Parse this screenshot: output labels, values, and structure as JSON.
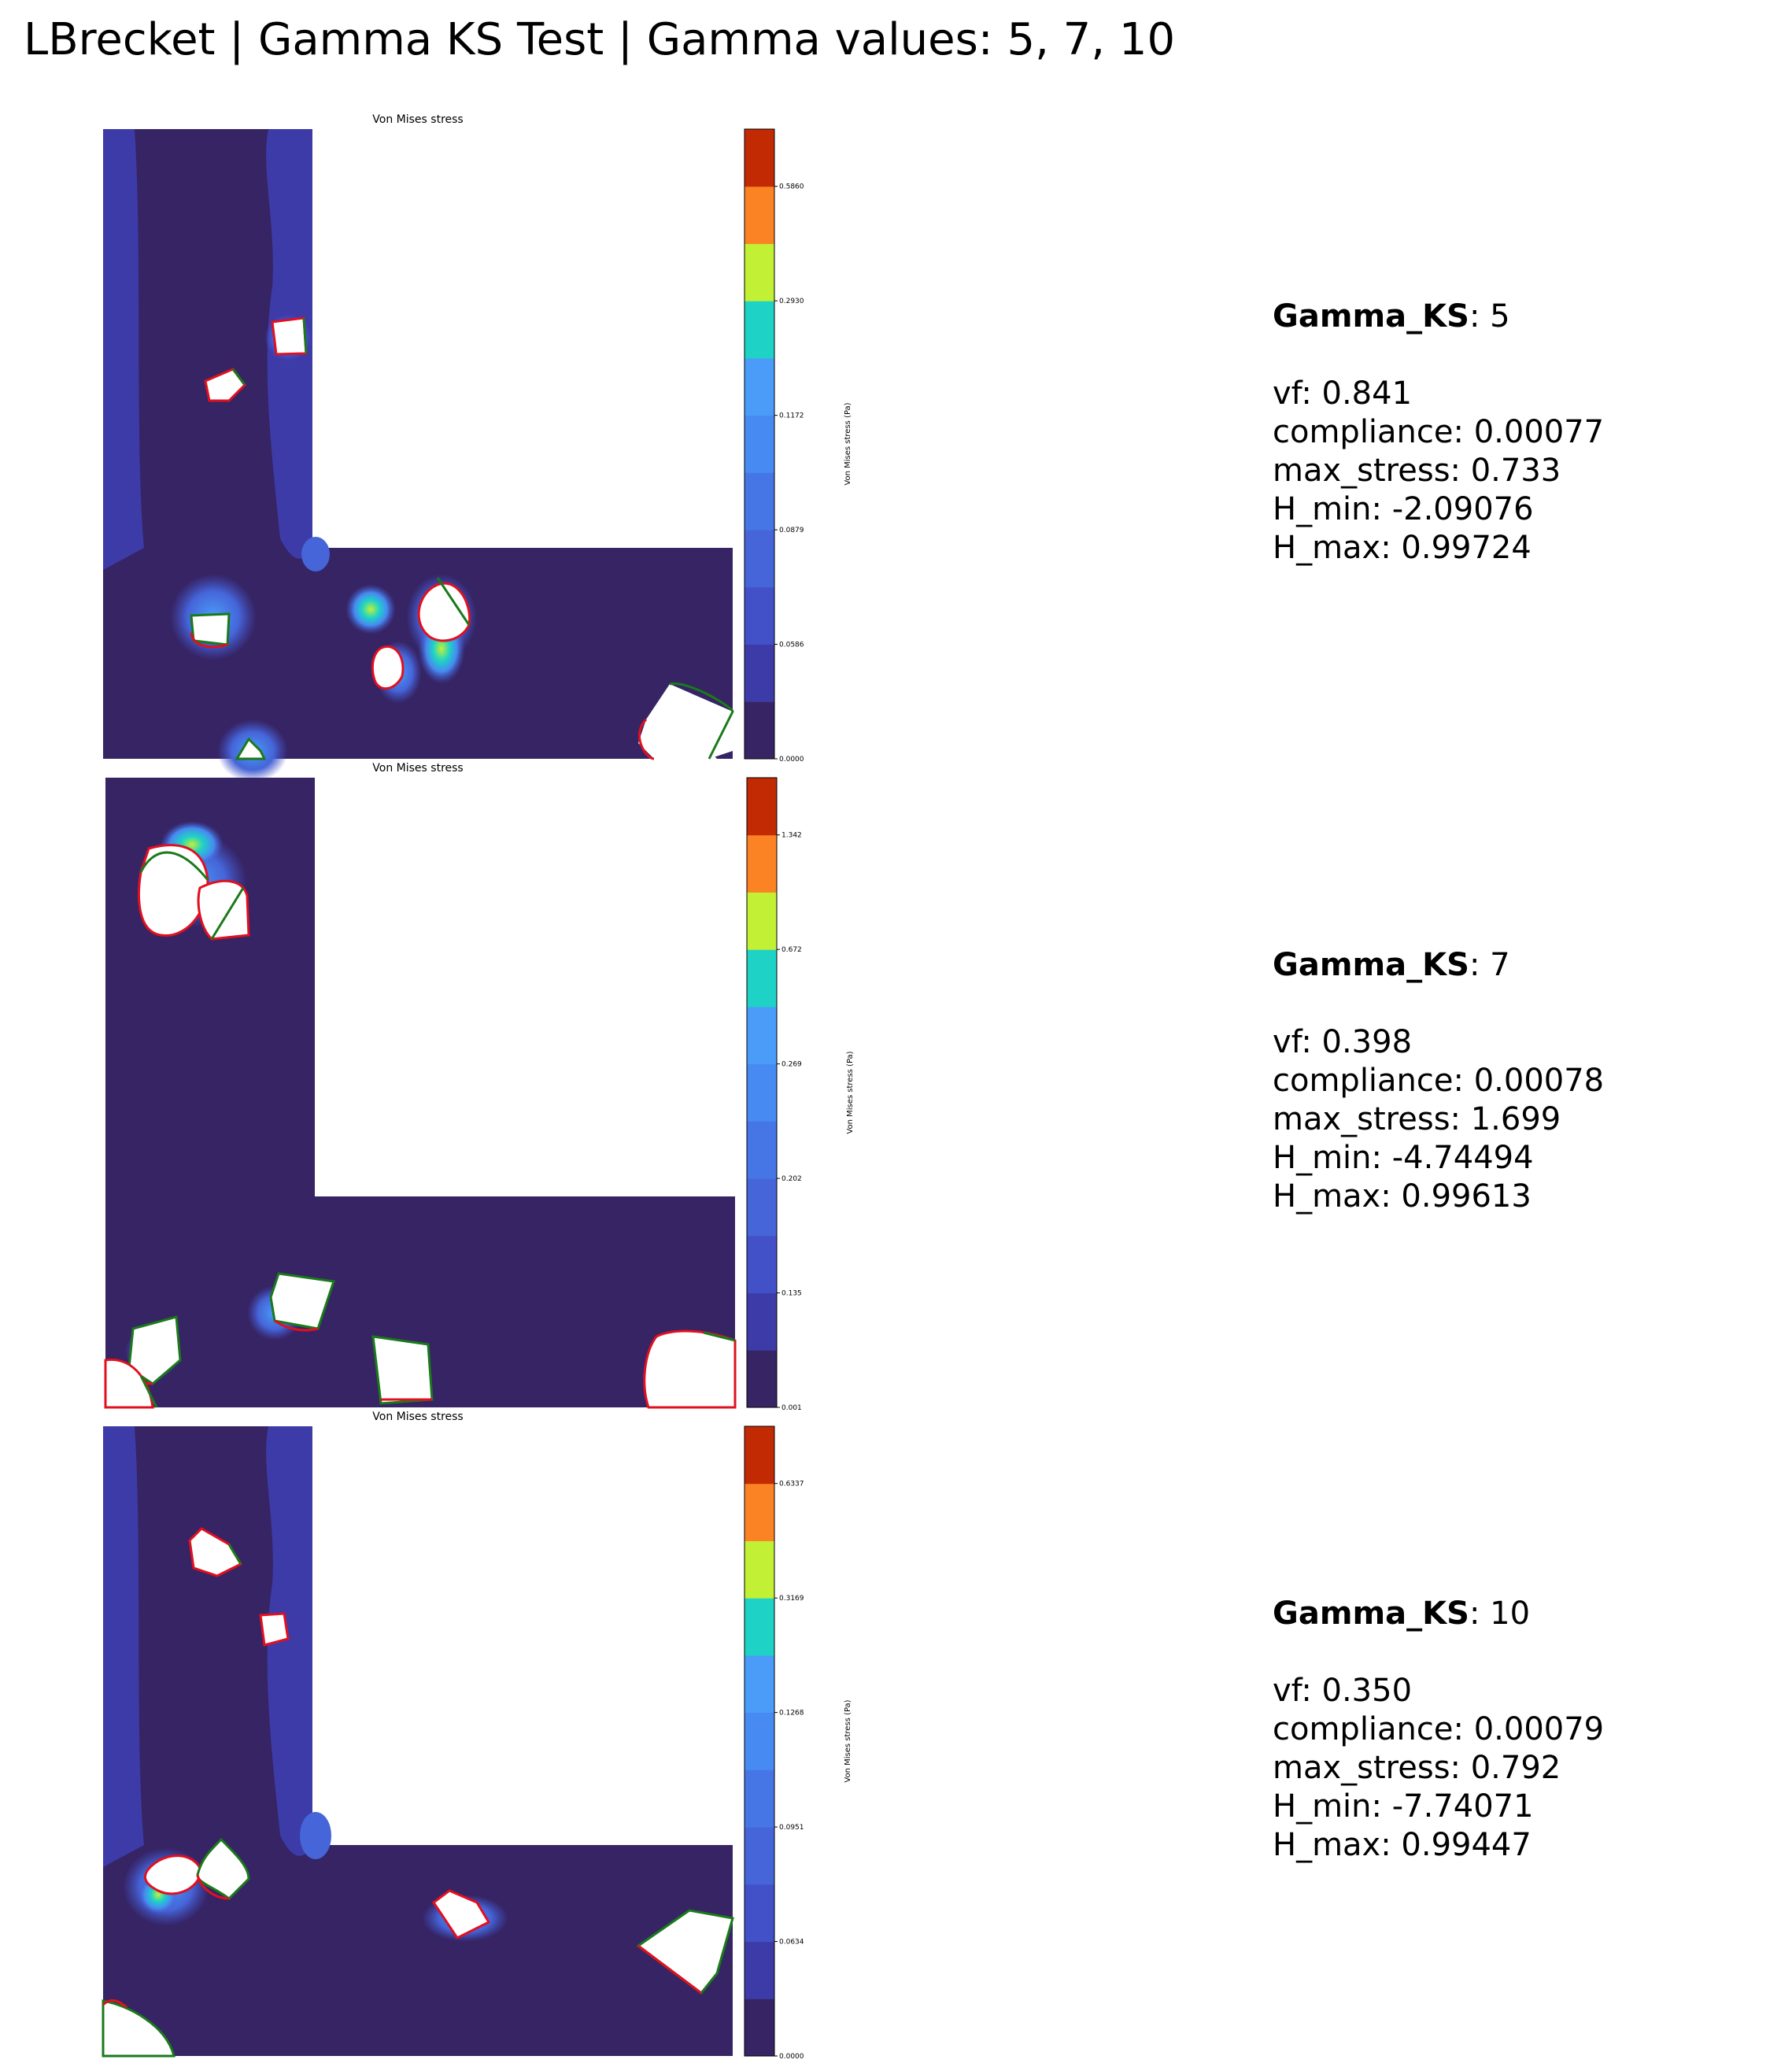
{
  "page_title": "LBrecket | Gamma KS Test | Gamma values: 5, 7, 10",
  "colors": {
    "background_field": "#362464",
    "cut_fill": "#ffffff",
    "outline_red": "#e01020",
    "outline_green": "#1a7a1a"
  },
  "colormap": [
    "#362464",
    "#3d3ba8",
    "#4251c7",
    "#4565d8",
    "#4676e6",
    "#478af1",
    "#4a9cf8",
    "#1ed3c6",
    "#c2f034",
    "#fb8324",
    "#c22a03"
  ],
  "chart_data": [
    {
      "type": "heatmap",
      "title": "Von Mises stress",
      "colorbar_label": "Von Mises stress (Pa)",
      "colorbar_ticks": [
        "0.0000",
        "0.0586",
        "0.0879",
        "0.1172",
        "0.2930",
        "0.5860"
      ],
      "gamma_label": "Gamma_KS",
      "gamma_value": ": 5",
      "stats": [
        "vf: 0.841",
        "compliance: 0.00077",
        "max_stress: 0.733",
        "H_min: -2.09076",
        "H_max: 0.99724"
      ]
    },
    {
      "type": "heatmap",
      "title": "Von Mises stress",
      "colorbar_label": "Von Mises stress (Pa)",
      "colorbar_ticks": [
        "0.001",
        "0.135",
        "0.202",
        "0.269",
        "0.672",
        "1.342"
      ],
      "gamma_label": "Gamma_KS",
      "gamma_value": ": 7",
      "stats": [
        "vf: 0.398",
        "compliance: 0.00078",
        "max_stress: 1.699",
        "H_min: -4.74494",
        "H_max: 0.99613"
      ]
    },
    {
      "type": "heatmap",
      "title": "Von Mises stress",
      "colorbar_label": "Von Mises stress (Pa)",
      "colorbar_ticks": [
        "0.0000",
        "0.0634",
        "0.0951",
        "0.1268",
        "0.3169",
        "0.6337"
      ],
      "gamma_label": "Gamma_KS",
      "gamma_value": ": 10",
      "stats": [
        "vf: 0.350",
        "compliance: 0.00079",
        "max_stress: 0.792",
        "H_min: -7.74071",
        "H_max: 0.99447"
      ]
    }
  ]
}
